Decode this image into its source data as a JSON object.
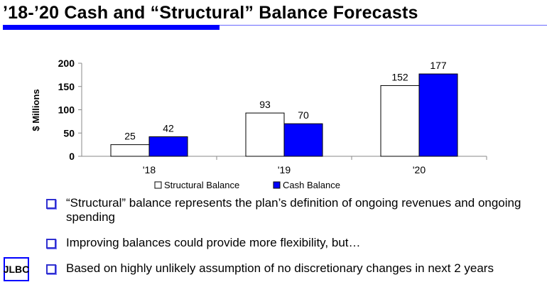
{
  "slide": {
    "title": "’18-’20 Cash and “Structural” Balance Forecasts",
    "bullets": [
      "“Structural” balance represents the plan’s definition of ongoing revenues and ongoing spending",
      "Improving balances could provide more flexibility, but…",
      "Based on highly unlikely assumption of no discretionary changes in next 2 years"
    ],
    "logo_text": "JLBC"
  },
  "chart_data": {
    "type": "bar",
    "categories": [
      "'18",
      "'19",
      "'20"
    ],
    "series": [
      {
        "name": "Structural Balance",
        "values": [
          25,
          93,
          152
        ],
        "color": "#ffffff"
      },
      {
        "name": "Cash Balance",
        "values": [
          42,
          70,
          177
        ],
        "color": "#0000ff"
      }
    ],
    "ylabel": "$ Millions",
    "ylim": [
      0,
      200
    ],
    "yticks": [
      0,
      50,
      100,
      150,
      200
    ],
    "grid": false,
    "legend": "bottom",
    "data_labels": true
  }
}
